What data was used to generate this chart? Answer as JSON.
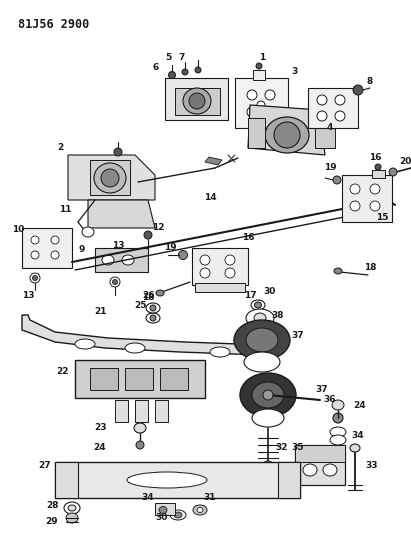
{
  "title": "81J56 2900",
  "bg_color": "#ffffff",
  "line_color": "#1a1a1a",
  "fig_width": 4.11,
  "fig_height": 5.33,
  "dpi": 100
}
